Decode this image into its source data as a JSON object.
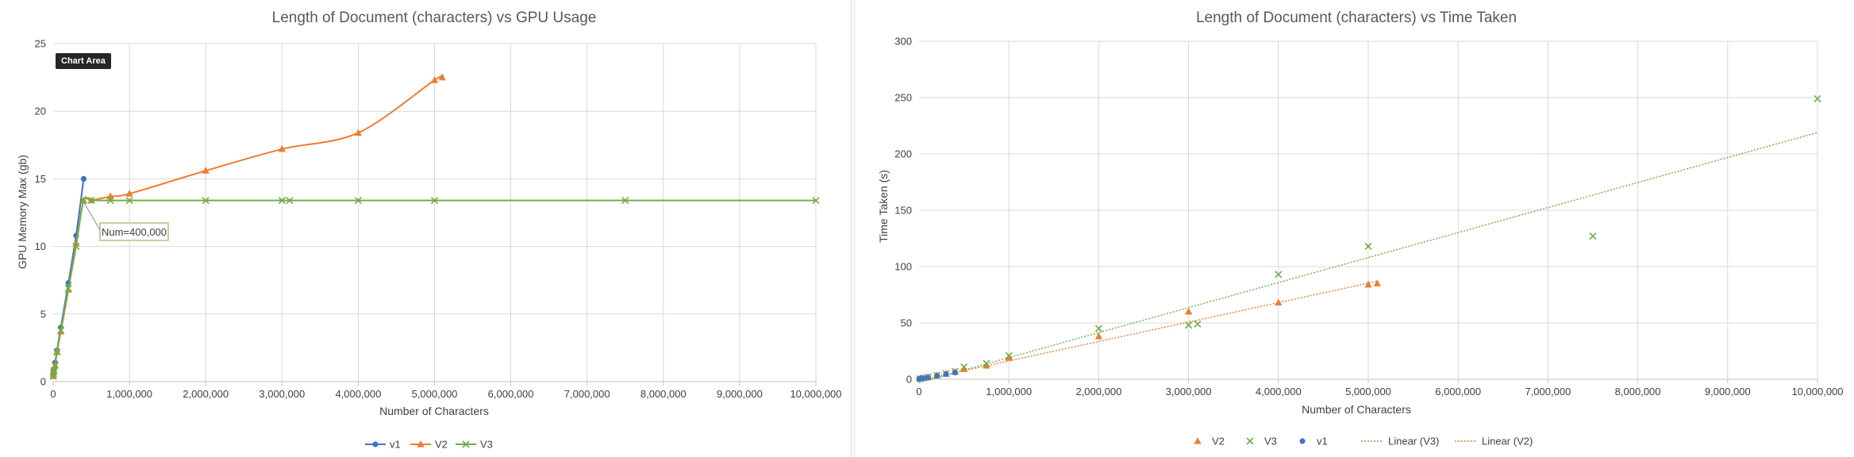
{
  "chart_data": [
    {
      "type": "line",
      "title": "Length of Document (characters) vs GPU Usage",
      "xlabel": "Number of Characters",
      "ylabel": "GPU Memory Max (gb)",
      "xlim": [
        0,
        10000000
      ],
      "ylim": [
        0,
        25
      ],
      "x_ticks": [
        0,
        1000000,
        2000000,
        3000000,
        4000000,
        5000000,
        6000000,
        7000000,
        8000000,
        9000000,
        10000000
      ],
      "x_tick_labels": [
        "0",
        "1,000,000",
        "2,000,000",
        "3,000,000",
        "4,000,000",
        "5,000,000",
        "6,000,000",
        "7,000,000",
        "8,000,000",
        "9,000,000",
        "10,000,000"
      ],
      "y_ticks": [
        0,
        5,
        10,
        15,
        20,
        25
      ],
      "y_tick_labels": [
        "0",
        "5",
        "10",
        "15",
        "20",
        "25"
      ],
      "grid": true,
      "legend_position": "bottom",
      "series": [
        {
          "name": "v1",
          "color": "#4472c4",
          "marker": "circle",
          "x": [
            1000,
            5000,
            10000,
            25000,
            50000,
            100000,
            200000,
            300000,
            400000
          ],
          "y": [
            0.5,
            0.7,
            0.9,
            1.4,
            2.3,
            4.0,
            7.3,
            10.8,
            15.0
          ]
        },
        {
          "name": "V2",
          "color": "#ed7d31",
          "marker": "triangle",
          "x": [
            1000,
            5000,
            10000,
            25000,
            50000,
            100000,
            200000,
            300000,
            400000,
            500000,
            750000,
            1000000,
            2000000,
            3000000,
            4000000,
            5000000,
            5100000
          ],
          "y": [
            0.4,
            0.6,
            0.8,
            1.2,
            2.2,
            3.7,
            6.8,
            10.2,
            13.4,
            13.4,
            13.7,
            13.9,
            15.6,
            17.2,
            18.4,
            22.3,
            22.5
          ]
        },
        {
          "name": "V3",
          "color": "#70ad47",
          "marker": "x",
          "x": [
            1000,
            5000,
            10000,
            25000,
            50000,
            100000,
            200000,
            300000,
            400000,
            500000,
            750000,
            1000000,
            2000000,
            3000000,
            3100000,
            4000000,
            5000000,
            7500000,
            10000000
          ],
          "y": [
            0.4,
            0.6,
            0.8,
            1.2,
            2.2,
            3.8,
            6.9,
            10.0,
            13.4,
            13.4,
            13.4,
            13.4,
            13.4,
            13.4,
            13.4,
            13.4,
            13.4,
            13.4,
            13.4
          ]
        }
      ],
      "annotations": [
        {
          "text": "Num=400,000",
          "x": 400000,
          "y": 13.4
        }
      ],
      "tooltip": "Chart Area"
    },
    {
      "type": "scatter",
      "title": "Length of Document (characters) vs Time Taken",
      "xlabel": "Number of Characters",
      "ylabel": "Time Taken (s)",
      "xlim": [
        0,
        10000000
      ],
      "ylim": [
        0,
        300
      ],
      "x_ticks": [
        0,
        1000000,
        2000000,
        3000000,
        4000000,
        5000000,
        6000000,
        7000000,
        8000000,
        9000000,
        10000000
      ],
      "x_tick_labels": [
        "0",
        "1,000,000",
        "2,000,000",
        "3,000,000",
        "4,000,000",
        "5,000,000",
        "6,000,000",
        "7,000,000",
        "8,000,000",
        "9,000,000",
        "10,000,000"
      ],
      "y_ticks": [
        0,
        50,
        100,
        150,
        200,
        250,
        300
      ],
      "y_tick_labels": [
        "0",
        "50",
        "100",
        "150",
        "200",
        "250",
        "300"
      ],
      "grid": true,
      "legend_position": "bottom",
      "series": [
        {
          "name": "V2",
          "color": "#ed7d31",
          "marker": "triangle",
          "x": [
            10000,
            50000,
            100000,
            200000,
            300000,
            400000,
            500000,
            750000,
            1000000,
            2000000,
            3000000,
            4000000,
            5000000,
            5100000
          ],
          "y": [
            0.5,
            1,
            2,
            3.5,
            5,
            6.5,
            9,
            12,
            19,
            38,
            60,
            68,
            84,
            85
          ]
        },
        {
          "name": "V3",
          "color": "#70ad47",
          "marker": "x",
          "x": [
            10000,
            50000,
            100000,
            200000,
            300000,
            400000,
            500000,
            750000,
            1000000,
            2000000,
            3000000,
            3100000,
            4000000,
            5000000,
            7500000,
            10000000
          ],
          "y": [
            0.5,
            1,
            2,
            3.5,
            5,
            7,
            11,
            14,
            21,
            45,
            48,
            49,
            93,
            118,
            127,
            249
          ]
        },
        {
          "name": "v1",
          "color": "#4472c4",
          "marker": "circle",
          "x": [
            1000,
            10000,
            25000,
            50000,
            100000,
            200000,
            300000,
            400000
          ],
          "y": [
            0.3,
            0.5,
            0.8,
            1,
            1.5,
            3,
            4.5,
            6
          ]
        }
      ],
      "trendlines": [
        {
          "name": "Linear (V3)",
          "color": "#70ad47",
          "x": [
            0,
            10000000
          ],
          "y": [
            -3,
            219
          ]
        },
        {
          "name": "Linear (V2)",
          "color": "#ed7d31",
          "x": [
            0,
            5100000
          ],
          "y": [
            -1,
            87
          ]
        }
      ]
    }
  ]
}
